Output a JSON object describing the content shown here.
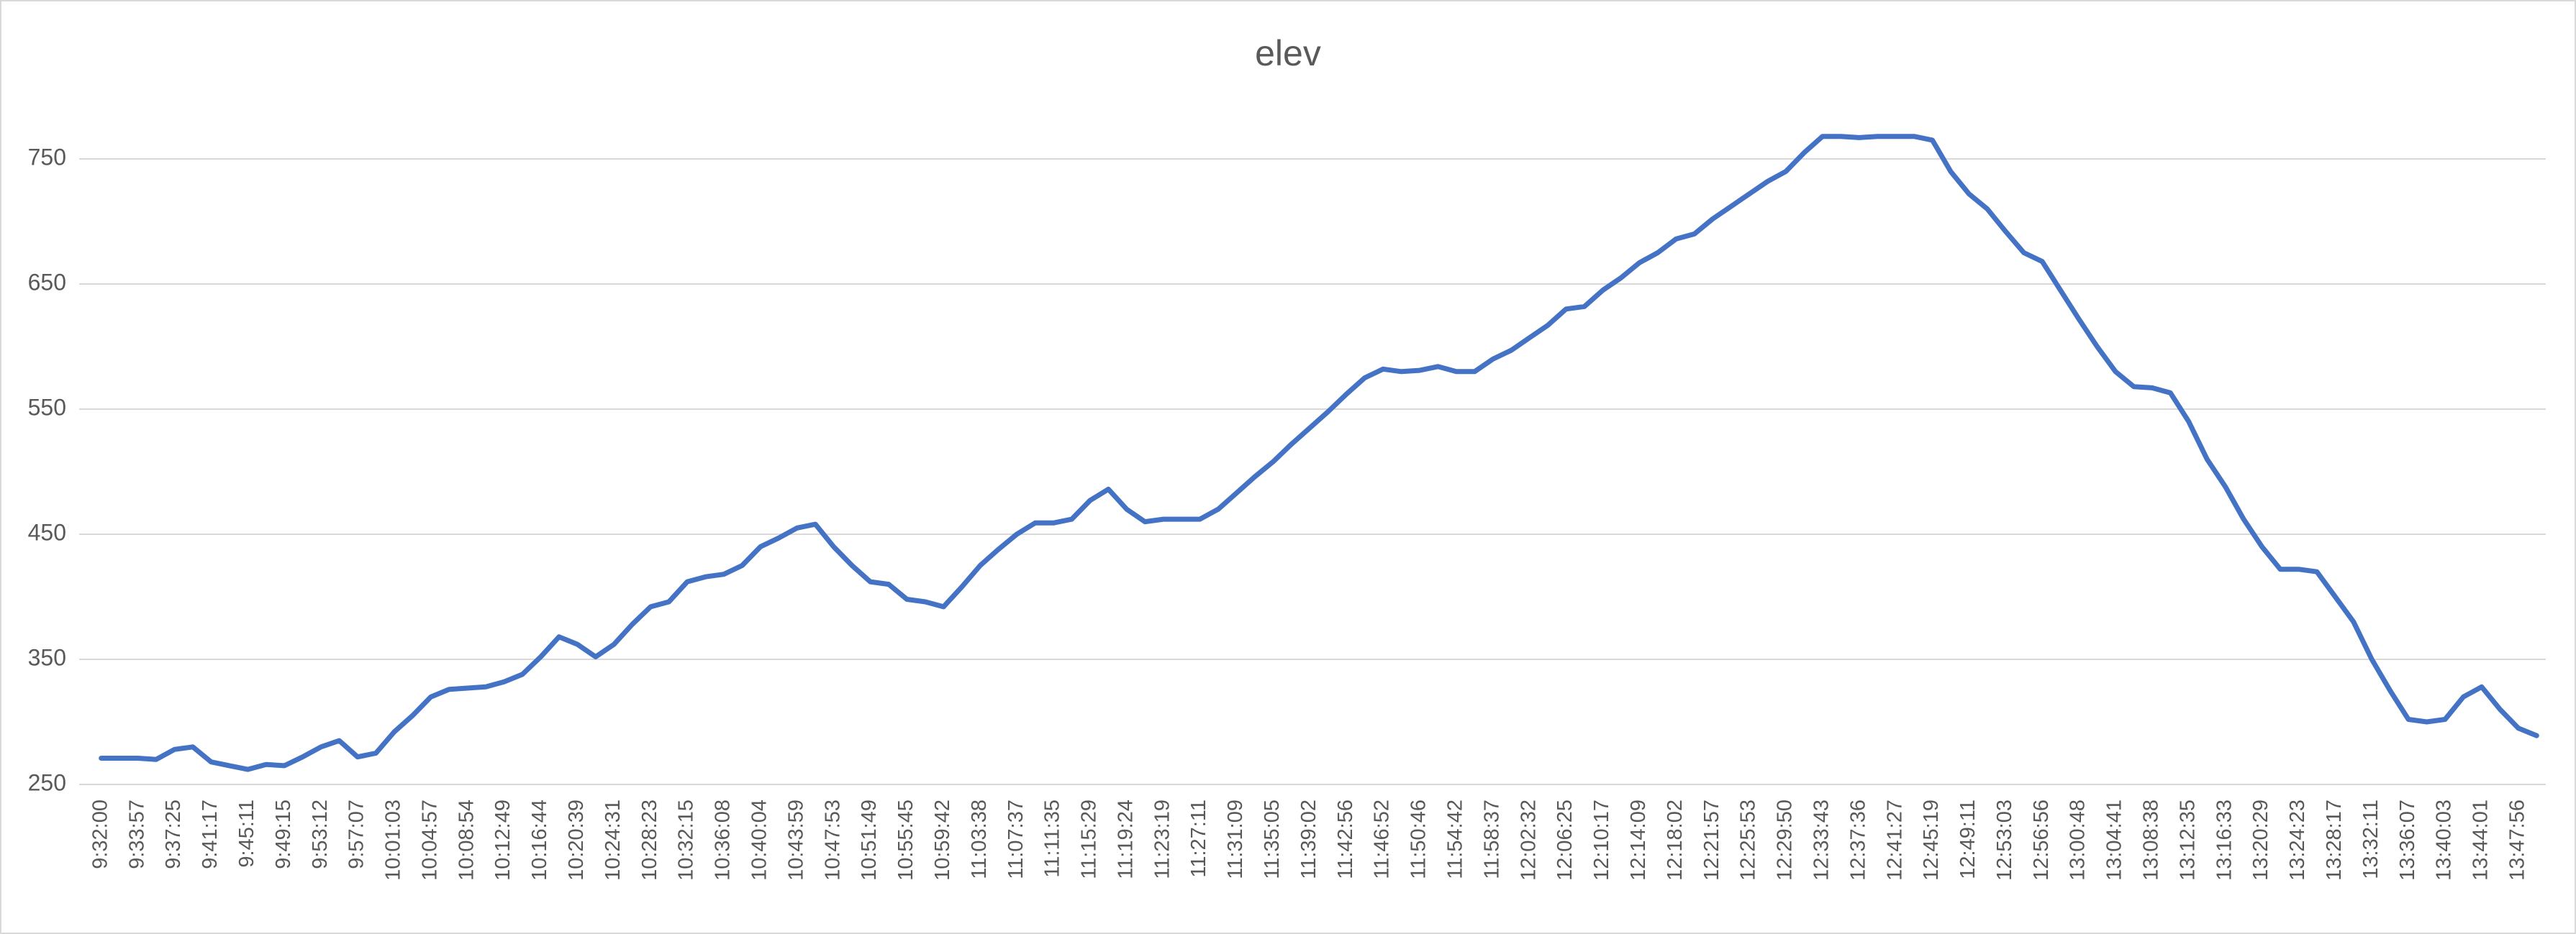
{
  "chart_data": {
    "type": "line",
    "title": "elev",
    "categories": [
      "9:32:00",
      null,
      "9:33:57",
      null,
      "9:37:25",
      null,
      "9:41:17",
      null,
      "9:45:11",
      null,
      "9:49:15",
      null,
      "9:53:12",
      null,
      "9:57:07",
      null,
      "10:01:03",
      null,
      "10:04:57",
      null,
      "10:08:54",
      null,
      "10:12:49",
      null,
      "10:16:44",
      null,
      "10:20:39",
      null,
      "10:24:31",
      null,
      "10:28:23",
      null,
      "10:32:15",
      null,
      "10:36:08",
      null,
      "10:40:04",
      null,
      "10:43:59",
      null,
      "10:47:53",
      null,
      "10:51:49",
      null,
      "10:55:45",
      null,
      "10:59:42",
      null,
      "11:03:38",
      null,
      "11:07:37",
      null,
      "11:11:35",
      null,
      "11:15:29",
      null,
      "11:19:24",
      null,
      "11:23:19",
      null,
      "11:27:11",
      null,
      "11:31:09",
      null,
      "11:35:05",
      null,
      "11:39:02",
      null,
      "11:42:56",
      null,
      "11:46:52",
      null,
      "11:50:46",
      null,
      "11:54:42",
      null,
      "11:58:37",
      null,
      "12:02:32",
      null,
      "12:06:25",
      null,
      "12:10:17",
      null,
      "12:14:09",
      null,
      "12:18:02",
      null,
      "12:21:57",
      null,
      "12:25:53",
      null,
      "12:29:50",
      null,
      "12:33:43",
      null,
      "12:37:36",
      null,
      "12:41:27",
      null,
      "12:45:19",
      null,
      "12:49:11",
      null,
      "12:53:03",
      null,
      "12:56:56",
      null,
      "13:00:48",
      null,
      "13:04:41",
      null,
      "13:08:38",
      null,
      "13:12:35",
      null,
      "13:16:33",
      null,
      "13:20:29",
      null,
      "13:24:23",
      null,
      "13:28:17",
      null,
      "13:32:11",
      null,
      "13:36:07",
      null,
      "13:40:03",
      null,
      "13:44:01",
      null,
      "13:47:56",
      null
    ],
    "values": [
      271,
      271,
      271,
      270,
      278,
      280,
      268,
      265,
      262,
      266,
      265,
      272,
      280,
      285,
      272,
      275,
      292,
      305,
      320,
      326,
      327,
      328,
      332,
      338,
      352,
      368,
      362,
      352,
      362,
      378,
      392,
      396,
      412,
      416,
      418,
      425,
      440,
      447,
      455,
      458,
      440,
      425,
      412,
      410,
      398,
      396,
      392,
      408,
      425,
      438,
      450,
      459,
      459,
      462,
      477,
      486,
      470,
      460,
      462,
      462,
      462,
      470,
      483,
      496,
      508,
      522,
      535,
      548,
      562,
      575,
      582,
      580,
      581,
      584,
      580,
      580,
      590,
      597,
      607,
      617,
      630,
      632,
      645,
      655,
      667,
      675,
      686,
      690,
      702,
      712,
      722,
      732,
      740,
      755,
      768,
      768,
      767,
      768,
      768,
      768,
      765,
      740,
      722,
      710,
      692,
      675,
      668,
      645,
      622,
      600,
      580,
      568,
      567,
      563,
      540,
      510,
      488,
      462,
      440,
      422,
      422,
      420,
      400,
      380,
      350,
      325,
      302,
      300,
      302,
      320,
      328,
      310,
      295,
      289
    ],
    "color": "#4472c4",
    "ylim": [
      250,
      800
    ],
    "yticks": [
      250,
      350,
      450,
      550,
      650,
      750
    ],
    "grid": true
  }
}
